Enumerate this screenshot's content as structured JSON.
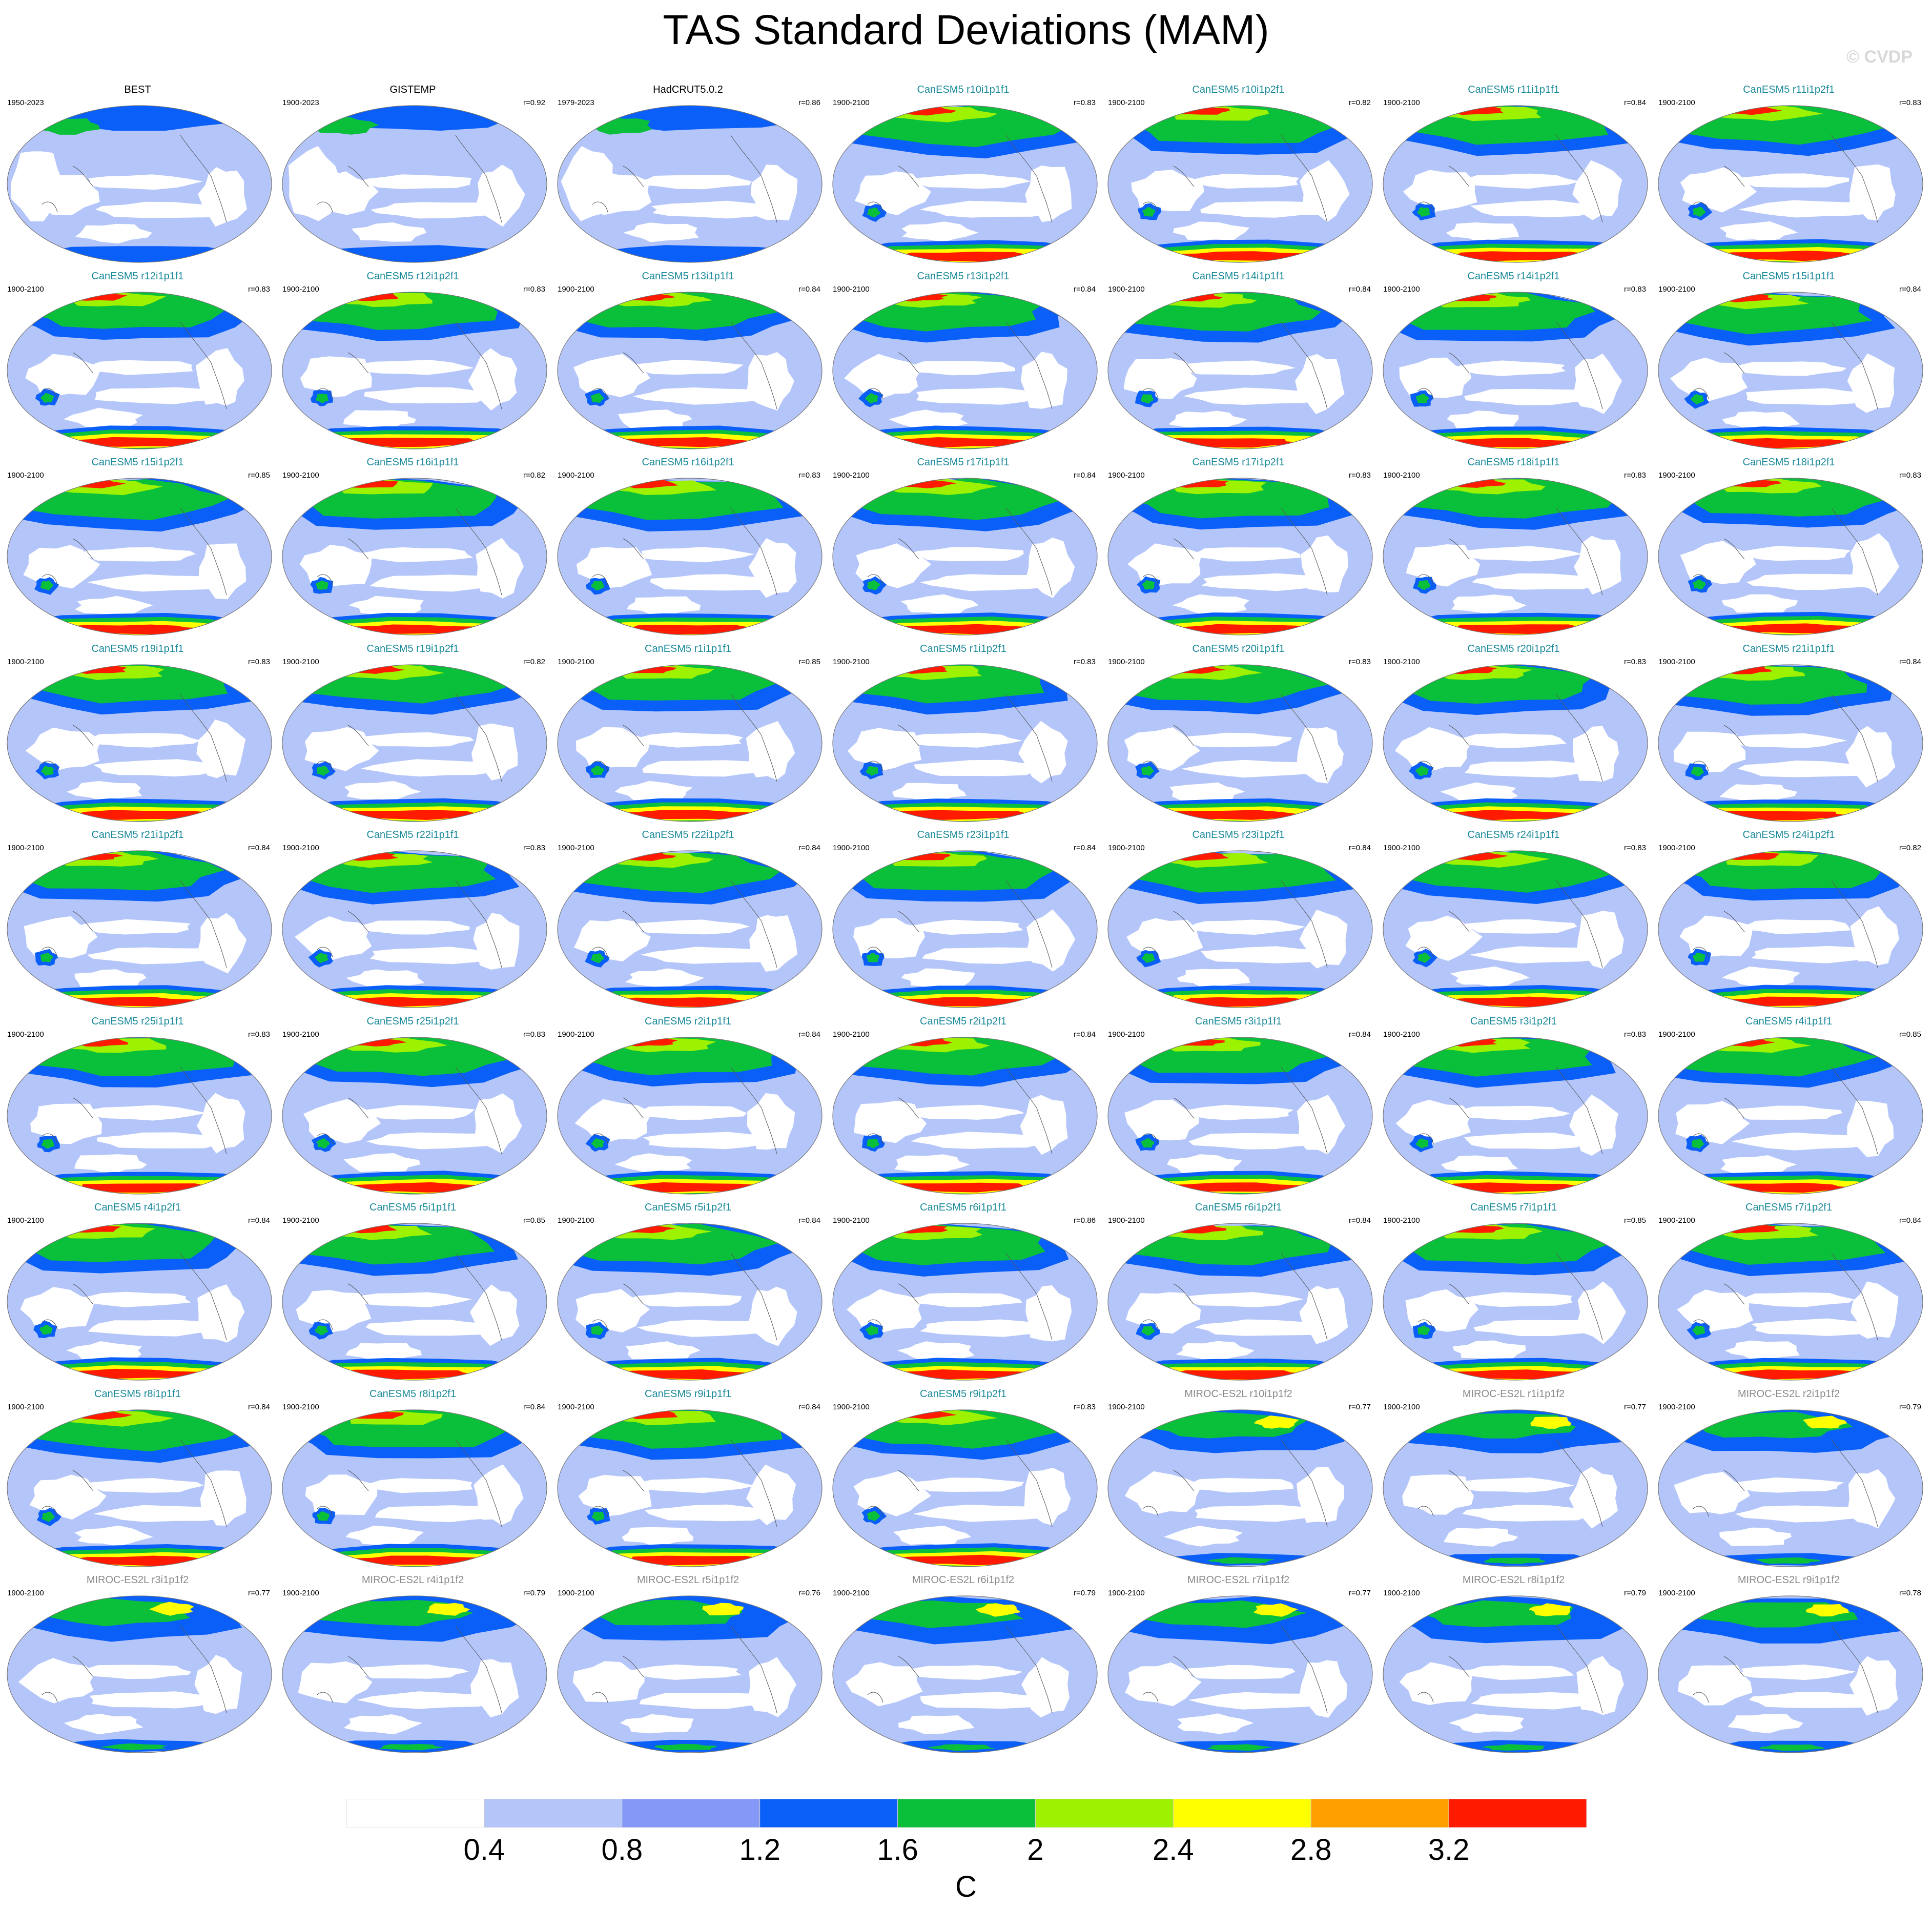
{
  "title": "TAS Standard Deviations (MAM)",
  "credit": "© CVDP",
  "title_colors": {
    "observation": "#000000",
    "CanESM5": "#1a8a9a",
    "MIROC-ES2L": "#8a8a8a"
  },
  "panels": [
    {
      "title": "BEST",
      "period": "1950-2023",
      "r": "",
      "group": "observation"
    },
    {
      "title": "GISTEMP",
      "period": "1900-2023",
      "r": "r=0.92",
      "group": "observation"
    },
    {
      "title": "HadCRUT5.0.2",
      "period": "1979-2023",
      "r": "r=0.86",
      "group": "observation"
    },
    {
      "title": "CanESM5 r10i1p1f1",
      "period": "1900-2100",
      "r": "r=0.83",
      "group": "CanESM5"
    },
    {
      "title": "CanESM5 r10i1p2f1",
      "period": "1900-2100",
      "r": "r=0.82",
      "group": "CanESM5"
    },
    {
      "title": "CanESM5 r11i1p1f1",
      "period": "1900-2100",
      "r": "r=0.84",
      "group": "CanESM5"
    },
    {
      "title": "CanESM5 r11i1p2f1",
      "period": "1900-2100",
      "r": "r=0.83",
      "group": "CanESM5"
    },
    {
      "title": "CanESM5 r12i1p1f1",
      "period": "1900-2100",
      "r": "r=0.83",
      "group": "CanESM5"
    },
    {
      "title": "CanESM5 r12i1p2f1",
      "period": "1900-2100",
      "r": "r=0.83",
      "group": "CanESM5"
    },
    {
      "title": "CanESM5 r13i1p1f1",
      "period": "1900-2100",
      "r": "r=0.84",
      "group": "CanESM5"
    },
    {
      "title": "CanESM5 r13i1p2f1",
      "period": "1900-2100",
      "r": "r=0.84",
      "group": "CanESM5"
    },
    {
      "title": "CanESM5 r14i1p1f1",
      "period": "1900-2100",
      "r": "r=0.84",
      "group": "CanESM5"
    },
    {
      "title": "CanESM5 r14i1p2f1",
      "period": "1900-2100",
      "r": "r=0.83",
      "group": "CanESM5"
    },
    {
      "title": "CanESM5 r15i1p1f1",
      "period": "1900-2100",
      "r": "r=0.84",
      "group": "CanESM5"
    },
    {
      "title": "CanESM5 r15i1p2f1",
      "period": "1900-2100",
      "r": "r=0.85",
      "group": "CanESM5"
    },
    {
      "title": "CanESM5 r16i1p1f1",
      "period": "1900-2100",
      "r": "r=0.82",
      "group": "CanESM5"
    },
    {
      "title": "CanESM5 r16i1p2f1",
      "period": "1900-2100",
      "r": "r=0.83",
      "group": "CanESM5"
    },
    {
      "title": "CanESM5 r17i1p1f1",
      "period": "1900-2100",
      "r": "r=0.84",
      "group": "CanESM5"
    },
    {
      "title": "CanESM5 r17i1p2f1",
      "period": "1900-2100",
      "r": "r=0.83",
      "group": "CanESM5"
    },
    {
      "title": "CanESM5 r18i1p1f1",
      "period": "1900-2100",
      "r": "r=0.83",
      "group": "CanESM5"
    },
    {
      "title": "CanESM5 r18i1p2f1",
      "period": "1900-2100",
      "r": "r=0.83",
      "group": "CanESM5"
    },
    {
      "title": "CanESM5 r19i1p1f1",
      "period": "1900-2100",
      "r": "r=0.83",
      "group": "CanESM5"
    },
    {
      "title": "CanESM5 r19i1p2f1",
      "period": "1900-2100",
      "r": "r=0.82",
      "group": "CanESM5"
    },
    {
      "title": "CanESM5 r1i1p1f1",
      "period": "1900-2100",
      "r": "r=0.85",
      "group": "CanESM5"
    },
    {
      "title": "CanESM5 r1i1p2f1",
      "period": "1900-2100",
      "r": "r=0.83",
      "group": "CanESM5"
    },
    {
      "title": "CanESM5 r20i1p1f1",
      "period": "1900-2100",
      "r": "r=0.83",
      "group": "CanESM5"
    },
    {
      "title": "CanESM5 r20i1p2f1",
      "period": "1900-2100",
      "r": "r=0.83",
      "group": "CanESM5"
    },
    {
      "title": "CanESM5 r21i1p1f1",
      "period": "1900-2100",
      "r": "r=0.84",
      "group": "CanESM5"
    },
    {
      "title": "CanESM5 r21i1p2f1",
      "period": "1900-2100",
      "r": "r=0.84",
      "group": "CanESM5"
    },
    {
      "title": "CanESM5 r22i1p1f1",
      "period": "1900-2100",
      "r": "r=0.83",
      "group": "CanESM5"
    },
    {
      "title": "CanESM5 r22i1p2f1",
      "period": "1900-2100",
      "r": "r=0.84",
      "group": "CanESM5"
    },
    {
      "title": "CanESM5 r23i1p1f1",
      "period": "1900-2100",
      "r": "r=0.84",
      "group": "CanESM5"
    },
    {
      "title": "CanESM5 r23i1p2f1",
      "period": "1900-2100",
      "r": "r=0.84",
      "group": "CanESM5"
    },
    {
      "title": "CanESM5 r24i1p1f1",
      "period": "1900-2100",
      "r": "r=0.83",
      "group": "CanESM5"
    },
    {
      "title": "CanESM5 r24i1p2f1",
      "period": "1900-2100",
      "r": "r=0.82",
      "group": "CanESM5"
    },
    {
      "title": "CanESM5 r25i1p1f1",
      "period": "1900-2100",
      "r": "r=0.83",
      "group": "CanESM5"
    },
    {
      "title": "CanESM5 r25i1p2f1",
      "period": "1900-2100",
      "r": "r=0.83",
      "group": "CanESM5"
    },
    {
      "title": "CanESM5 r2i1p1f1",
      "period": "1900-2100",
      "r": "r=0.84",
      "group": "CanESM5"
    },
    {
      "title": "CanESM5 r2i1p2f1",
      "period": "1900-2100",
      "r": "r=0.84",
      "group": "CanESM5"
    },
    {
      "title": "CanESM5 r3i1p1f1",
      "period": "1900-2100",
      "r": "r=0.84",
      "group": "CanESM5"
    },
    {
      "title": "CanESM5 r3i1p2f1",
      "period": "1900-2100",
      "r": "r=0.83",
      "group": "CanESM5"
    },
    {
      "title": "CanESM5 r4i1p1f1",
      "period": "1900-2100",
      "r": "r=0.85",
      "group": "CanESM5"
    },
    {
      "title": "CanESM5 r4i1p2f1",
      "period": "1900-2100",
      "r": "r=0.84",
      "group": "CanESM5"
    },
    {
      "title": "CanESM5 r5i1p1f1",
      "period": "1900-2100",
      "r": "r=0.85",
      "group": "CanESM5"
    },
    {
      "title": "CanESM5 r5i1p2f1",
      "period": "1900-2100",
      "r": "r=0.84",
      "group": "CanESM5"
    },
    {
      "title": "CanESM5 r6i1p1f1",
      "period": "1900-2100",
      "r": "r=0.86",
      "group": "CanESM5"
    },
    {
      "title": "CanESM5 r6i1p2f1",
      "period": "1900-2100",
      "r": "r=0.84",
      "group": "CanESM5"
    },
    {
      "title": "CanESM5 r7i1p1f1",
      "period": "1900-2100",
      "r": "r=0.85",
      "group": "CanESM5"
    },
    {
      "title": "CanESM5 r7i1p2f1",
      "period": "1900-2100",
      "r": "r=0.84",
      "group": "CanESM5"
    },
    {
      "title": "CanESM5 r8i1p1f1",
      "period": "1900-2100",
      "r": "r=0.84",
      "group": "CanESM5"
    },
    {
      "title": "CanESM5 r8i1p2f1",
      "period": "1900-2100",
      "r": "r=0.84",
      "group": "CanESM5"
    },
    {
      "title": "CanESM5 r9i1p1f1",
      "period": "1900-2100",
      "r": "r=0.84",
      "group": "CanESM5"
    },
    {
      "title": "CanESM5 r9i1p2f1",
      "period": "1900-2100",
      "r": "r=0.83",
      "group": "CanESM5"
    },
    {
      "title": "MIROC-ES2L r10i1p1f2",
      "period": "1900-2100",
      "r": "r=0.77",
      "group": "MIROC-ES2L"
    },
    {
      "title": "MIROC-ES2L r1i1p1f2",
      "period": "1900-2100",
      "r": "r=0.77",
      "group": "MIROC-ES2L"
    },
    {
      "title": "MIROC-ES2L r2i1p1f2",
      "period": "1900-2100",
      "r": "r=0.79",
      "group": "MIROC-ES2L"
    },
    {
      "title": "MIROC-ES2L r3i1p1f2",
      "period": "1900-2100",
      "r": "r=0.77",
      "group": "MIROC-ES2L"
    },
    {
      "title": "MIROC-ES2L r4i1p1f2",
      "period": "1900-2100",
      "r": "r=0.79",
      "group": "MIROC-ES2L"
    },
    {
      "title": "MIROC-ES2L r5i1p1f2",
      "period": "1900-2100",
      "r": "r=0.76",
      "group": "MIROC-ES2L"
    },
    {
      "title": "MIROC-ES2L r6i1p1f2",
      "period": "1900-2100",
      "r": "r=0.79",
      "group": "MIROC-ES2L"
    },
    {
      "title": "MIROC-ES2L r7i1p1f2",
      "period": "1900-2100",
      "r": "r=0.77",
      "group": "MIROC-ES2L"
    },
    {
      "title": "MIROC-ES2L r8i1p1f2",
      "period": "1900-2100",
      "r": "r=0.79",
      "group": "MIROC-ES2L"
    },
    {
      "title": "MIROC-ES2L r9i1p1f2",
      "period": "1900-2100",
      "r": "r=0.78",
      "group": "MIROC-ES2L"
    }
  ],
  "colorbar": {
    "colors": [
      "#ffffff",
      "#b4c5fa",
      "#8498f7",
      "#0a5ff8",
      "#0abf3a",
      "#9cf200",
      "#ffff00",
      "#ff9f00",
      "#ff1a00"
    ],
    "ticks": [
      "0.4",
      "0.8",
      "1.2",
      "1.6",
      "2",
      "2.4",
      "2.8",
      "3.2"
    ],
    "unit": "C"
  },
  "map_colors": {
    "ocean_bg": "#b4c5fa",
    "weak": "#ffffff",
    "mid": "#8498f7",
    "strong": "#0a5ff8",
    "green": "#0abf3a",
    "lime": "#9cf200",
    "yellow": "#ffff00",
    "orange": "#ff9f00",
    "red": "#ff1a00",
    "coast": "#555555"
  }
}
